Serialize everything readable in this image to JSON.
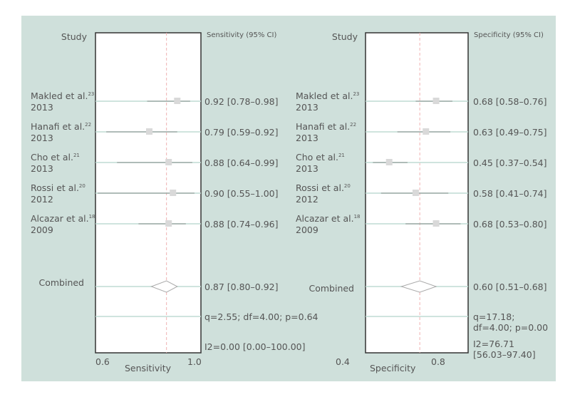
{
  "chart_data": [
    {
      "type": "forest",
      "study_header": "Study",
      "ci_header": "Sensitivity (95% CI)",
      "xlabel": "Sensitivity",
      "xticks": [
        "0.6",
        "1.0"
      ],
      "xlim": [
        0.54,
        1.03
      ],
      "reference_line": 0.87,
      "studies": [
        {
          "name": "Makled et al.",
          "ref": "23",
          "year": "2013",
          "est": 0.92,
          "lo": 0.78,
          "hi": 0.98,
          "label": "0.92 [0.78–0.98]"
        },
        {
          "name": "Hanafi et al.",
          "ref": "22",
          "year": "2013",
          "est": 0.79,
          "lo": 0.59,
          "hi": 0.92,
          "label": "0.79 [0.59–0.92]"
        },
        {
          "name": "Cho et al.",
          "ref": "21",
          "year": "2013",
          "est": 0.88,
          "lo": 0.64,
          "hi": 0.99,
          "label": "0.88 [0.64–0.99]"
        },
        {
          "name": "Rossi et al.",
          "ref": "20",
          "year": "2012",
          "est": 0.9,
          "lo": 0.55,
          "hi": 1.0,
          "label": "0.90 [0.55–1.00]"
        },
        {
          "name": "Alcazar et al.",
          "ref": "18",
          "year": "2009",
          "est": 0.88,
          "lo": 0.74,
          "hi": 0.96,
          "label": "0.88 [0.74–0.96]"
        }
      ],
      "combined": {
        "name": "Combined",
        "est": 0.87,
        "lo": 0.8,
        "hi": 0.92,
        "label": "0.87 [0.80–0.92]"
      },
      "heterogeneity": "q=2.55; df=4.00; p=0.64",
      "i2": "I2=0.00 [0.00–100.00]"
    },
    {
      "type": "forest",
      "study_header": "Study",
      "ci_header": "Specificity (95% CI)",
      "xlabel": "Specificity",
      "xticks": [
        "0.4",
        "0.8"
      ],
      "xlim": [
        0.334,
        0.837
      ],
      "reference_line": 0.6,
      "studies": [
        {
          "name": "Makled et al.",
          "ref": "23",
          "year": "2013",
          "est": 0.68,
          "lo": 0.58,
          "hi": 0.76,
          "label": "0.68 [0.58–0.76]"
        },
        {
          "name": "Hanafi et al.",
          "ref": "22",
          "year": "2013",
          "est": 0.63,
          "lo": 0.49,
          "hi": 0.75,
          "label": "0.63 [0.49–0.75]"
        },
        {
          "name": "Cho et al.",
          "ref": "21",
          "year": "2013",
          "est": 0.45,
          "lo": 0.37,
          "hi": 0.54,
          "label": "0.45 [0.37–0.54]"
        },
        {
          "name": "Rossi et al.",
          "ref": "20",
          "year": "2012",
          "est": 0.58,
          "lo": 0.41,
          "hi": 0.74,
          "label": "0.58 [0.41–0.74]"
        },
        {
          "name": "Alcazar et al.",
          "ref": "18",
          "year": "2009",
          "est": 0.68,
          "lo": 0.53,
          "hi": 0.8,
          "label": "0.68 [0.53–0.80]"
        }
      ],
      "combined": {
        "name": "Combined",
        "est": 0.6,
        "lo": 0.51,
        "hi": 0.68,
        "label": "0.60 [0.51–0.68]"
      },
      "heterogeneity": "q=17.18; df=4.00; p=0.00",
      "i2": "I2=76.71 [56.03–97.40]"
    }
  ],
  "colors": {
    "background": "#cfe0db",
    "marker": "#d9d9d9",
    "ci_line": "#7f8c88",
    "row_line": "#bfdcd4",
    "reference": "#f0b0b0"
  }
}
